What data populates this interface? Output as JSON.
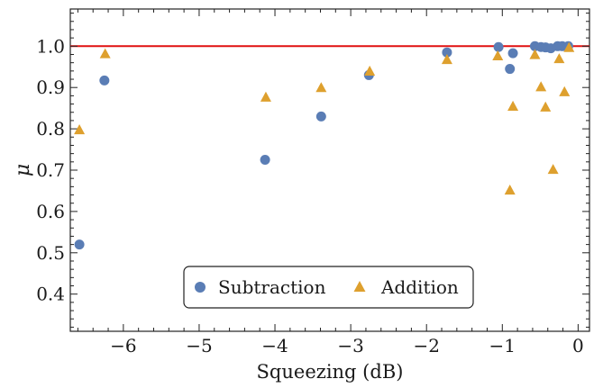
{
  "chart_data": {
    "type": "scatter",
    "title": "",
    "xlabel": "Squeezing (dB)",
    "ylabel": "μ",
    "xlim": [
      -6.7,
      0.15
    ],
    "ylim": [
      0.31,
      1.09
    ],
    "xticks": [
      -6,
      -5,
      -4,
      -3,
      -2,
      -1,
      0
    ],
    "xtick_labels": [
      "−6",
      "−5",
      "−4",
      "−3",
      "−2",
      "−1",
      "0"
    ],
    "yticks": [
      0.4,
      0.5,
      0.6,
      0.7,
      0.8,
      0.9,
      1.0
    ],
    "ytick_labels": [
      "0.4",
      "0.5",
      "0.6",
      "0.7",
      "0.8",
      "0.9",
      "1.0"
    ],
    "grid": false,
    "legend_position": "bottom-center",
    "reference_line": {
      "y": 1.0,
      "color": "#e01010"
    },
    "series": [
      {
        "name": "Subtraction",
        "marker": "circle",
        "color": "#5a7db5",
        "points": [
          [
            -6.58,
            0.52
          ],
          [
            -6.25,
            0.917
          ],
          [
            -4.13,
            0.725
          ],
          [
            -3.39,
            0.83
          ],
          [
            -2.76,
            0.93
          ],
          [
            -1.73,
            0.985
          ],
          [
            -1.05,
            0.998
          ],
          [
            -0.9,
            0.945
          ],
          [
            -0.86,
            0.983
          ],
          [
            -0.57,
            1.0
          ],
          [
            -0.49,
            0.998
          ],
          [
            -0.43,
            0.997
          ],
          [
            -0.36,
            0.995
          ],
          [
            -0.27,
            1.0
          ],
          [
            -0.21,
            1.0
          ],
          [
            -0.13,
            1.0
          ]
        ]
      },
      {
        "name": "Addition",
        "marker": "triangle",
        "color": "#dea02e",
        "points": [
          [
            -6.58,
            0.798
          ],
          [
            -6.24,
            0.982
          ],
          [
            -4.12,
            0.877
          ],
          [
            -3.39,
            0.9
          ],
          [
            -2.75,
            0.94
          ],
          [
            -1.73,
            0.968
          ],
          [
            -1.06,
            0.977
          ],
          [
            -0.9,
            0.652
          ],
          [
            -0.86,
            0.855
          ],
          [
            -0.57,
            0.98
          ],
          [
            -0.49,
            0.902
          ],
          [
            -0.43,
            0.853
          ],
          [
            -0.33,
            0.702
          ],
          [
            -0.25,
            0.97
          ],
          [
            -0.18,
            0.89
          ],
          [
            -0.12,
            0.997
          ]
        ]
      }
    ]
  }
}
